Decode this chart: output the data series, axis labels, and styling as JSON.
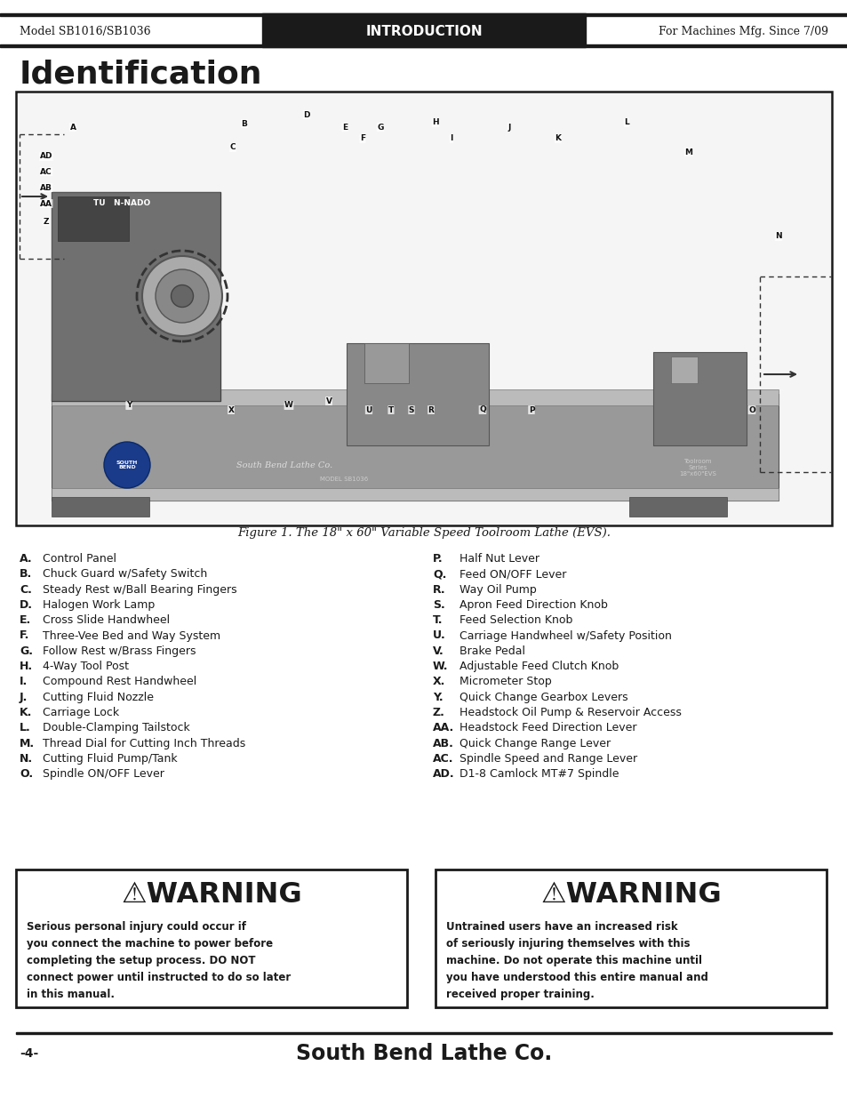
{
  "header_left": "Model SB1016/SB1036",
  "header_center": "INTRODUCTION",
  "header_right": "For Machines Mfg. Since 7/09",
  "page_title": "Identification",
  "figure_caption": "Figure 1. The 18\" x 60\" Variable Speed Toolroom Lathe (EVS).",
  "footer_page": "-4-",
  "footer_brand": "South Bend Lathe Co.",
  "items_left": [
    [
      "A.",
      "Control Panel"
    ],
    [
      "B.",
      "Chuck Guard w/Safety Switch"
    ],
    [
      "C.",
      "Steady Rest w/Ball Bearing Fingers"
    ],
    [
      "D.",
      "Halogen Work Lamp"
    ],
    [
      "E.",
      "Cross Slide Handwheel"
    ],
    [
      "F.",
      "Three-Vee Bed and Way System"
    ],
    [
      "G.",
      "Follow Rest w/Brass Fingers"
    ],
    [
      "H.",
      "4-Way Tool Post"
    ],
    [
      "I.",
      "Compound Rest Handwheel"
    ],
    [
      "J.",
      "Cutting Fluid Nozzle"
    ],
    [
      "K.",
      "Carriage Lock"
    ],
    [
      "L.",
      "Double-Clamping Tailstock"
    ],
    [
      "M.",
      "Thread Dial for Cutting Inch Threads"
    ],
    [
      "N.",
      "Cutting Fluid Pump/Tank"
    ],
    [
      "O.",
      "Spindle ON/OFF Lever"
    ]
  ],
  "items_right": [
    [
      "P.",
      "Half Nut Lever"
    ],
    [
      "Q.",
      "Feed ON/OFF Lever"
    ],
    [
      "R.",
      "Way Oil Pump"
    ],
    [
      "S.",
      "Apron Feed Direction Knob"
    ],
    [
      "T.",
      "Feed Selection Knob"
    ],
    [
      "U.",
      "Carriage Handwheel w/Safety Position"
    ],
    [
      "V.",
      "Brake Pedal"
    ],
    [
      "W.",
      "Adjustable Feed Clutch Knob"
    ],
    [
      "X.",
      "Micrometer Stop"
    ],
    [
      "Y.",
      "Quick Change Gearbox Levers"
    ],
    [
      "Z.",
      "Headstock Oil Pump & Reservoir Access"
    ],
    [
      "AA.",
      "Headstock Feed Direction Lever"
    ],
    [
      "AB.",
      "Quick Change Range Lever"
    ],
    [
      "AC.",
      "Spindle Speed and Range Lever"
    ],
    [
      "AD.",
      "D1-8 Camlock MT#7 Spindle"
    ]
  ],
  "warning1_title": "⚠WARNING",
  "warning1_text": "Serious personal injury could occur if\nyou connect the machine to power before\ncompleting the setup process. DO NOT\nconnect power until instructed to do so later\nin this manual.",
  "warning2_title": "⚠WARNING",
  "warning2_text": "Untrained users have an increased risk\nof seriously injuring themselves with this\nmachine. Do not operate this machine until\nyou have understood this entire manual and\nreceived proper training.",
  "bg_color": "#ffffff",
  "header_bg": "#1a1a1a",
  "header_text_color": "#ffffff",
  "border_color": "#1a1a1a"
}
